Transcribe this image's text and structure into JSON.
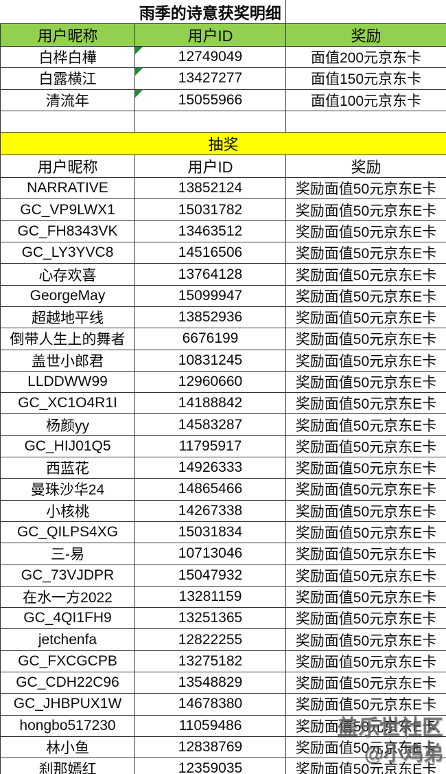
{
  "title": "雨季的诗意获奖明细",
  "colors": {
    "header_green": "#92D050",
    "banner_yellow": "#FFFF00",
    "flag_triangle_green": "#1E8C2E",
    "grid_border": "#333333",
    "watermark_gray": "#5F5F5F"
  },
  "winners": {
    "headers": [
      "用户昵称",
      "用户ID",
      "奖励"
    ],
    "rows": [
      {
        "nickname": "白桦白樺",
        "id": "12749049",
        "reward": "面值200元京东卡"
      },
      {
        "nickname": "白露横江",
        "id": "13427277",
        "reward": "面值150元京东卡"
      },
      {
        "nickname": "清流年",
        "id": "15055966",
        "reward": "面值100元京东卡"
      }
    ]
  },
  "lottery": {
    "section_title": "抽奖",
    "headers": [
      "用户昵称",
      "用户ID",
      "奖励"
    ],
    "rows": [
      {
        "nickname": "NARRATIVE",
        "id": "13852124",
        "reward": "奖励面值50元京东E卡"
      },
      {
        "nickname": "GC_VP9LWX1",
        "id": "15031782",
        "reward": "奖励面值50元京东E卡"
      },
      {
        "nickname": "GC_FH8343VK",
        "id": "13463512",
        "reward": "奖励面值50元京东E卡"
      },
      {
        "nickname": "GC_LY3YVC8",
        "id": "14516506",
        "reward": "奖励面值50元京东E卡"
      },
      {
        "nickname": "心存欢喜",
        "id": "13764128",
        "reward": "奖励面值50元京东E卡"
      },
      {
        "nickname": "GeorgeMay",
        "id": "15099947",
        "reward": "奖励面值50元京东E卡"
      },
      {
        "nickname": "超越地平线",
        "id": "13852936",
        "reward": "奖励面值50元京东E卡"
      },
      {
        "nickname": "倒带人生上的舞者",
        "id": "6676199",
        "reward": "奖励面值50元京东E卡"
      },
      {
        "nickname": "盖世小郎君",
        "id": "10831245",
        "reward": "奖励面值50元京东E卡"
      },
      {
        "nickname": "LLDDWW99",
        "id": "12960660",
        "reward": "奖励面值50元京东E卡"
      },
      {
        "nickname": "GC_XC1O4R1I",
        "id": "14188842",
        "reward": "奖励面值50元京东E卡"
      },
      {
        "nickname": "杨颜yy",
        "id": "14583287",
        "reward": "奖励面值50元京东E卡"
      },
      {
        "nickname": "GC_HIJ01Q5",
        "id": "11795917",
        "reward": "奖励面值50元京东E卡"
      },
      {
        "nickname": "西蓝花",
        "id": "14926333",
        "reward": "奖励面值50元京东E卡"
      },
      {
        "nickname": "曼珠沙华24",
        "id": "14865466",
        "reward": "奖励面值50元京东E卡"
      },
      {
        "nickname": "小核桃",
        "id": "14267338",
        "reward": "奖励面值50元京东E卡"
      },
      {
        "nickname": "GC_QILPS4XG",
        "id": "15031834",
        "reward": "奖励面值50元京东E卡"
      },
      {
        "nickname": "三-易",
        "id": "10713046",
        "reward": "奖励面值50元京东E卡"
      },
      {
        "nickname": "GC_73VJDPR",
        "id": "15047932",
        "reward": "奖励面值50元京东E卡"
      },
      {
        "nickname": "在水一方2022",
        "id": "13281159",
        "reward": "奖励面值50元京东E卡"
      },
      {
        "nickname": "GC_4QI1FH9",
        "id": "13251365",
        "reward": "奖励面值50元京东E卡"
      },
      {
        "nickname": "jetchenfa",
        "id": "12822255",
        "reward": "奖励面值50元京东E卡"
      },
      {
        "nickname": "GC_FXCGCPB",
        "id": "13275182",
        "reward": "奖励面值50元京东E卡"
      },
      {
        "nickname": "GC_CDH22C96",
        "id": "13548829",
        "reward": "奖励面值50元京东E卡"
      },
      {
        "nickname": "GC_JHBPUX1W",
        "id": "14678380",
        "reward": "奖励面值50元京东E卡"
      },
      {
        "nickname": "hongbo517230",
        "id": "11059486",
        "reward": "奖励面值50元京东E卡"
      },
      {
        "nickname": "林小鱼",
        "id": "12838769",
        "reward": "奖励面值50元京东E卡"
      },
      {
        "nickname": "刹那嫣红",
        "id": "12359035",
        "reward": "奖励面值50元京东E卡"
      }
    ]
  },
  "watermark": {
    "line1": "盖乐世社区",
    "line2": "@小鸡弟"
  }
}
